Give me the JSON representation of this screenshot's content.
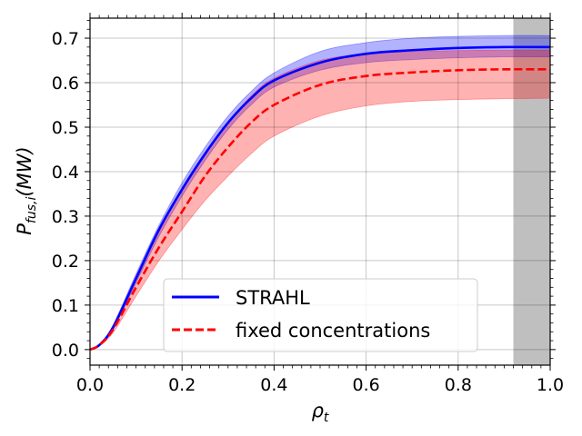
{
  "chart_data": {
    "type": "line",
    "title": "",
    "xlabel_main": "ρ",
    "xlabel_sub": "t",
    "ylabel_main": "P",
    "ylabel_sub": "fus,i",
    "ylabel_unit": "(MW)",
    "xlim": [
      0.0,
      1.0
    ],
    "ylim": [
      -0.035,
      0.745
    ],
    "xticks": [
      0.0,
      0.2,
      0.4,
      0.6,
      0.8,
      1.0
    ],
    "xtick_labels": [
      "0.0",
      "0.2",
      "0.4",
      "0.6",
      "0.8",
      "1.0"
    ],
    "yticks": [
      0.0,
      0.1,
      0.2,
      0.3,
      0.4,
      0.5,
      0.6,
      0.7
    ],
    "ytick_labels": [
      "0.0",
      "0.1",
      "0.2",
      "0.3",
      "0.4",
      "0.5",
      "0.6",
      "0.7"
    ],
    "grid": true,
    "shaded_region": {
      "x_start": 0.92,
      "x_end": 1.0,
      "color": "#bfbfbf"
    },
    "legend_position": "lower-center",
    "x": [
      0.0,
      0.02,
      0.05,
      0.1,
      0.15,
      0.2,
      0.25,
      0.3,
      0.35,
      0.4,
      0.5,
      0.6,
      0.7,
      0.8,
      0.9,
      1.0
    ],
    "series": [
      {
        "name": "STRAHL",
        "color": "#0000ff",
        "dash": "solid",
        "values": [
          0.0,
          0.01,
          0.05,
          0.16,
          0.27,
          0.36,
          0.44,
          0.51,
          0.565,
          0.605,
          0.645,
          0.665,
          0.673,
          0.678,
          0.68,
          0.68
        ],
        "band_upper": [
          0.0,
          0.01,
          0.055,
          0.17,
          0.28,
          0.375,
          0.455,
          0.525,
          0.58,
          0.622,
          0.67,
          0.69,
          0.7,
          0.704,
          0.706,
          0.706
        ],
        "band_lower": [
          0.0,
          0.009,
          0.045,
          0.15,
          0.255,
          0.345,
          0.425,
          0.495,
          0.55,
          0.59,
          0.628,
          0.645,
          0.652,
          0.656,
          0.658,
          0.658
        ]
      },
      {
        "name": "fixed concentrations",
        "color": "#ff0000",
        "dash": "dashed",
        "values": [
          0.0,
          0.01,
          0.045,
          0.14,
          0.23,
          0.31,
          0.39,
          0.455,
          0.51,
          0.55,
          0.595,
          0.615,
          0.623,
          0.628,
          0.63,
          0.63
        ],
        "band_upper": [
          0.0,
          0.011,
          0.05,
          0.16,
          0.265,
          0.36,
          0.44,
          0.51,
          0.57,
          0.61,
          0.65,
          0.665,
          0.67,
          0.672,
          0.673,
          0.673
        ],
        "band_lower": [
          0.0,
          0.008,
          0.038,
          0.12,
          0.2,
          0.27,
          0.335,
          0.39,
          0.44,
          0.48,
          0.525,
          0.548,
          0.558,
          0.562,
          0.564,
          0.565
        ]
      }
    ]
  }
}
